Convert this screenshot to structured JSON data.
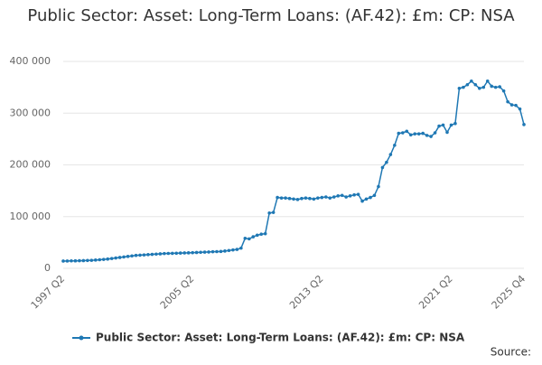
{
  "chart_data": {
    "type": "line",
    "title": "Public Sector: Asset: Long-Term Loans: (AF.42): £m: CP: NSA",
    "source_label": "Source:",
    "categories": [
      "1997 Q2",
      null,
      null,
      null,
      null,
      null,
      null,
      null,
      null,
      null,
      null,
      null,
      null,
      null,
      null,
      null,
      null,
      null,
      null,
      null,
      null,
      null,
      null,
      null,
      null,
      null,
      null,
      null,
      null,
      null,
      null,
      null,
      "2005 Q2",
      null,
      null,
      null,
      null,
      null,
      null,
      null,
      null,
      null,
      null,
      null,
      null,
      null,
      null,
      null,
      null,
      null,
      null,
      null,
      null,
      null,
      null,
      null,
      null,
      null,
      null,
      null,
      null,
      null,
      null,
      null,
      "2013 Q2",
      null,
      null,
      null,
      null,
      null,
      null,
      null,
      null,
      null,
      null,
      null,
      null,
      null,
      null,
      null,
      null,
      null,
      null,
      null,
      null,
      null,
      null,
      null,
      null,
      null,
      null,
      null,
      null,
      null,
      null,
      null,
      "2021 Q2",
      null,
      null,
      null,
      null,
      null,
      null,
      null,
      null,
      null,
      null,
      null,
      null,
      null,
      null,
      null,
      null,
      null,
      "2025 Q4"
    ],
    "series": [
      {
        "name": "Public Sector: Asset: Long-Term Loans: (AF.42): £m: CP: NSA",
        "color": "#1f78b4",
        "values": [
          14000,
          14200,
          14400,
          14500,
          14700,
          14900,
          15200,
          15500,
          16000,
          16600,
          17200,
          18000,
          19000,
          20000,
          21000,
          22000,
          23000,
          24000,
          25000,
          25500,
          26000,
          26500,
          27000,
          27500,
          28000,
          28500,
          28800,
          29000,
          29200,
          29500,
          29800,
          30000,
          30300,
          30600,
          31000,
          31300,
          31600,
          32000,
          32300,
          32600,
          33500,
          34500,
          35500,
          36500,
          39000,
          58000,
          57000,
          61000,
          64000,
          66000,
          67000,
          107000,
          108000,
          137000,
          136000,
          136000,
          135000,
          134000,
          133000,
          135000,
          136000,
          135000,
          134000,
          136000,
          137000,
          138000,
          136000,
          138000,
          140000,
          141000,
          138000,
          140000,
          142000,
          143000,
          130000,
          134000,
          137000,
          141000,
          158000,
          195000,
          205000,
          220000,
          238000,
          261000,
          262000,
          265000,
          258000,
          260000,
          260000,
          261000,
          257000,
          255000,
          262000,
          275000,
          277000,
          263000,
          277000,
          280000,
          348000,
          350000,
          355000,
          362000,
          355000,
          348000,
          350000,
          362000,
          352000,
          350000,
          351000,
          343000,
          322000,
          316000,
          315000,
          308000,
          278000
        ]
      }
    ],
    "ylim": [
      0,
      400000
    ],
    "yticks": [
      0,
      {
        "value": 100000,
        "label": "100 000"
      },
      {
        "value": 200000,
        "label": "200 000"
      },
      {
        "value": 300000,
        "label": "300 000"
      },
      {
        "value": 400000,
        "label": "400 000"
      }
    ],
    "grid": true,
    "legend": "bottom"
  }
}
